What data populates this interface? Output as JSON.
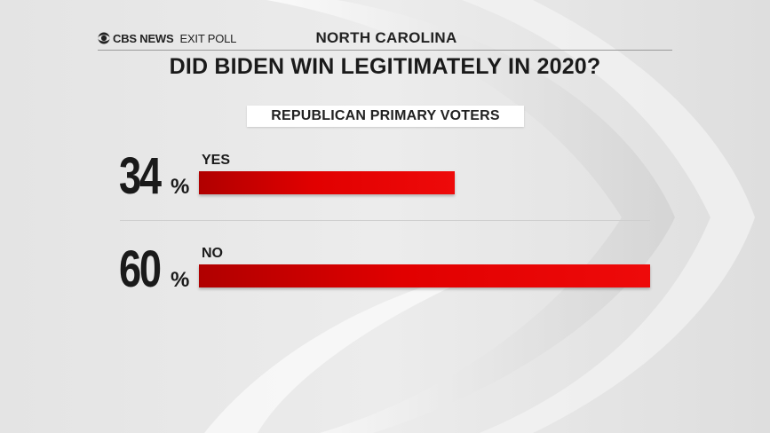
{
  "header": {
    "logo_brand": "CBS NEWS",
    "logo_suffix": "EXIT POLL",
    "state": "NORTH CAROLINA"
  },
  "title": "DID BIDEN WIN LEGITIMATELY IN 2020?",
  "subtitle": "REPUBLICAN PRIMARY VOTERS",
  "colors": {
    "bar": "#e10000",
    "text": "#1a1a1a"
  },
  "chart_data": {
    "type": "bar",
    "orientation": "horizontal",
    "title": "DID BIDEN WIN LEGITIMATELY IN 2020?",
    "subtitle": "REPUBLICAN PRIMARY VOTERS",
    "categories": [
      "YES",
      "NO"
    ],
    "values": [
      34,
      60
    ],
    "value_labels": [
      "34",
      "60"
    ],
    "unit": "%",
    "xlim": [
      0,
      60
    ]
  }
}
